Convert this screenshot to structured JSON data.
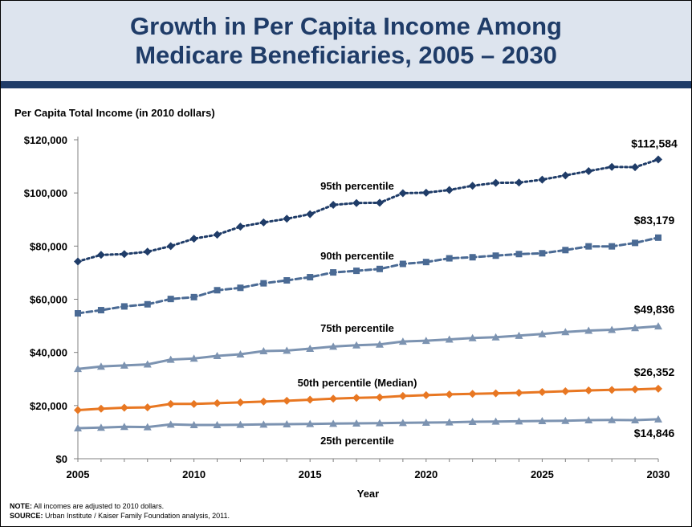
{
  "header": {
    "title_line1": "Growth in Per Capita Income Among",
    "title_line2": "Medicare Beneficiaries, 2005 – 2030"
  },
  "footer": {
    "note_label": "NOTE:",
    "note_text": "All incomes are adjusted to 2010 dollars.",
    "source_label": "SOURCE:",
    "source_text": "Urban Institute / Kaiser Family Foundation analysis, 2011."
  },
  "colors": {
    "title": "#1f3c68",
    "p95": "#1f3c68",
    "p90": "#4a6a94",
    "p75": "#7c93b1",
    "p50": "#e87722",
    "p25": "#7c93b1"
  },
  "chart_data": {
    "type": "line",
    "ylabel": "Per Capita Total Income (in 2010 dollars)",
    "xlabel": "Year",
    "xlim": [
      2005,
      2030
    ],
    "ylim": [
      0,
      120000
    ],
    "x_ticks": [
      2005,
      2010,
      2015,
      2020,
      2025,
      2030
    ],
    "y_ticks": [
      0,
      20000,
      40000,
      60000,
      80000,
      100000,
      120000
    ],
    "y_tick_labels": [
      "$0",
      "$20,000",
      "$40,000",
      "$60,000",
      "$80,000",
      "$100,000",
      "$120,000"
    ],
    "grid": false,
    "x": [
      2005,
      2006,
      2007,
      2008,
      2009,
      2010,
      2011,
      2012,
      2013,
      2014,
      2015,
      2016,
      2017,
      2018,
      2019,
      2020,
      2021,
      2022,
      2023,
      2024,
      2025,
      2026,
      2027,
      2028,
      2029,
      2030
    ],
    "series": [
      {
        "key": "p95",
        "name": "95th percentile",
        "marker": "diamond",
        "line": "dotted",
        "end_label": "$112,584",
        "values": [
          74200,
          76700,
          77000,
          77900,
          80000,
          82800,
          84300,
          87300,
          88900,
          90300,
          92000,
          95500,
          96200,
          96300,
          99900,
          100100,
          101100,
          102700,
          103800,
          103900,
          105000,
          106600,
          108200,
          109800,
          109700,
          112584
        ]
      },
      {
        "key": "p90",
        "name": "90th percentile",
        "marker": "square",
        "line": "dashed",
        "end_label": "$83,179",
        "values": [
          54700,
          55900,
          57300,
          58100,
          60100,
          60800,
          63400,
          64300,
          66000,
          67100,
          68300,
          70100,
          70700,
          71400,
          73300,
          74000,
          75400,
          75800,
          76400,
          77000,
          77300,
          78500,
          79900,
          79900,
          81200,
          83179
        ]
      },
      {
        "key": "p75",
        "name": "75th percentile",
        "marker": "triangle",
        "line": "solid",
        "end_label": "$49,836",
        "values": [
          33800,
          34700,
          35100,
          35500,
          37300,
          37700,
          38700,
          39300,
          40500,
          40700,
          41400,
          42200,
          42700,
          43000,
          44100,
          44400,
          44900,
          45400,
          45700,
          46300,
          46900,
          47700,
          48200,
          48500,
          49200,
          49836
        ]
      },
      {
        "key": "p50",
        "name": "50th percentile (Median)",
        "marker": "diamond",
        "line": "solid",
        "end_label": "$26,352",
        "values": [
          18300,
          18800,
          19200,
          19300,
          20600,
          20600,
          20900,
          21200,
          21500,
          21800,
          22200,
          22600,
          22900,
          23100,
          23600,
          23900,
          24200,
          24400,
          24600,
          24800,
          25100,
          25400,
          25700,
          25900,
          26100,
          26352
        ]
      },
      {
        "key": "p25",
        "name": "25th percentile",
        "marker": "triangle",
        "line": "solid",
        "end_label": "$14,846",
        "values": [
          11500,
          11700,
          12000,
          11900,
          12900,
          12700,
          12700,
          12800,
          12900,
          13000,
          13100,
          13200,
          13300,
          13400,
          13500,
          13600,
          13700,
          13900,
          14000,
          14100,
          14200,
          14300,
          14500,
          14600,
          14500,
          14846
        ]
      }
    ]
  }
}
